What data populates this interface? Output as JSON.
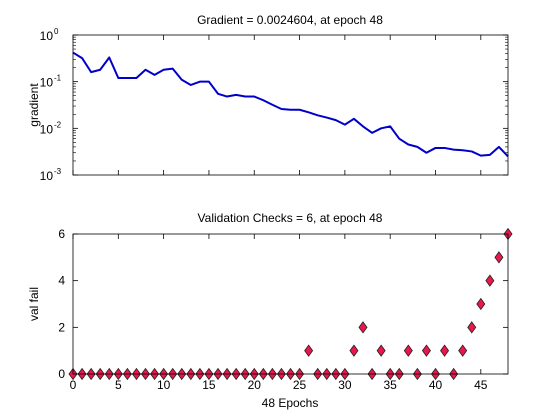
{
  "chart_data": [
    {
      "type": "line",
      "title": "Gradient = 0.0024604, at epoch 48",
      "xlabel": "",
      "ylabel": "gradient",
      "y_scale": "log",
      "xlim": [
        0,
        48
      ],
      "ylim": [
        0.001,
        1
      ],
      "y_tick_labels": [
        {
          "base": "10",
          "exp": "0",
          "value": 1
        },
        {
          "base": "10",
          "exp": "-1",
          "value": 0.1
        },
        {
          "base": "10",
          "exp": "-2",
          "value": 0.01
        },
        {
          "base": "10",
          "exp": "-3",
          "value": 0.001
        }
      ],
      "x_ticks_labeled": false,
      "line_color": "#0000cc",
      "x": [
        0,
        1,
        2,
        3,
        4,
        5,
        6,
        7,
        8,
        9,
        10,
        11,
        12,
        13,
        14,
        15,
        16,
        17,
        18,
        19,
        20,
        21,
        22,
        23,
        24,
        25,
        26,
        27,
        28,
        29,
        30,
        31,
        32,
        33,
        34,
        35,
        36,
        37,
        38,
        39,
        40,
        41,
        42,
        43,
        44,
        45,
        46,
        47,
        48
      ],
      "y": [
        0.42,
        0.32,
        0.16,
        0.18,
        0.33,
        0.12,
        0.12,
        0.12,
        0.18,
        0.14,
        0.18,
        0.19,
        0.11,
        0.085,
        0.1,
        0.1,
        0.055,
        0.048,
        0.052,
        0.048,
        0.048,
        0.04,
        0.032,
        0.026,
        0.025,
        0.025,
        0.022,
        0.019,
        0.017,
        0.015,
        0.012,
        0.016,
        0.011,
        0.008,
        0.01,
        0.011,
        0.006,
        0.0045,
        0.004,
        0.003,
        0.0038,
        0.0038,
        0.0035,
        0.0034,
        0.0032,
        0.0026,
        0.0027,
        0.004,
        0.0025
      ]
    },
    {
      "type": "scatter",
      "title": "Validation Checks = 6, at epoch 48",
      "xlabel": "48 Epochs",
      "ylabel": "val fail",
      "xlim": [
        0,
        48
      ],
      "ylim": [
        0,
        6
      ],
      "x_tick_labels": [
        "0",
        "5",
        "10",
        "15",
        "20",
        "25",
        "30",
        "35",
        "40",
        "45"
      ],
      "x_tick_values": [
        0,
        5,
        10,
        15,
        20,
        25,
        30,
        35,
        40,
        45
      ],
      "y_tick_labels": [
        "0",
        "2",
        "4",
        "6"
      ],
      "y_tick_values": [
        0,
        2,
        4,
        6
      ],
      "marker": "diamond",
      "marker_fill": "#e8174c",
      "marker_edge": "#222222",
      "x": [
        0,
        1,
        2,
        3,
        4,
        5,
        6,
        7,
        8,
        9,
        10,
        11,
        12,
        13,
        14,
        15,
        16,
        17,
        18,
        19,
        20,
        21,
        22,
        23,
        24,
        25,
        26,
        27,
        28,
        29,
        30,
        31,
        32,
        33,
        34,
        35,
        36,
        37,
        38,
        39,
        40,
        41,
        42,
        43,
        44,
        45,
        46,
        47,
        48
      ],
      "y": [
        0,
        0,
        0,
        0,
        0,
        0,
        0,
        0,
        0,
        0,
        0,
        0,
        0,
        0,
        0,
        0,
        0,
        0,
        0,
        0,
        0,
        0,
        0,
        0,
        0,
        0,
        1,
        0,
        0,
        0,
        0,
        1,
        2,
        0,
        1,
        0,
        0,
        1,
        0,
        1,
        0,
        1,
        0,
        1,
        2,
        3,
        4,
        5,
        6
      ]
    }
  ]
}
